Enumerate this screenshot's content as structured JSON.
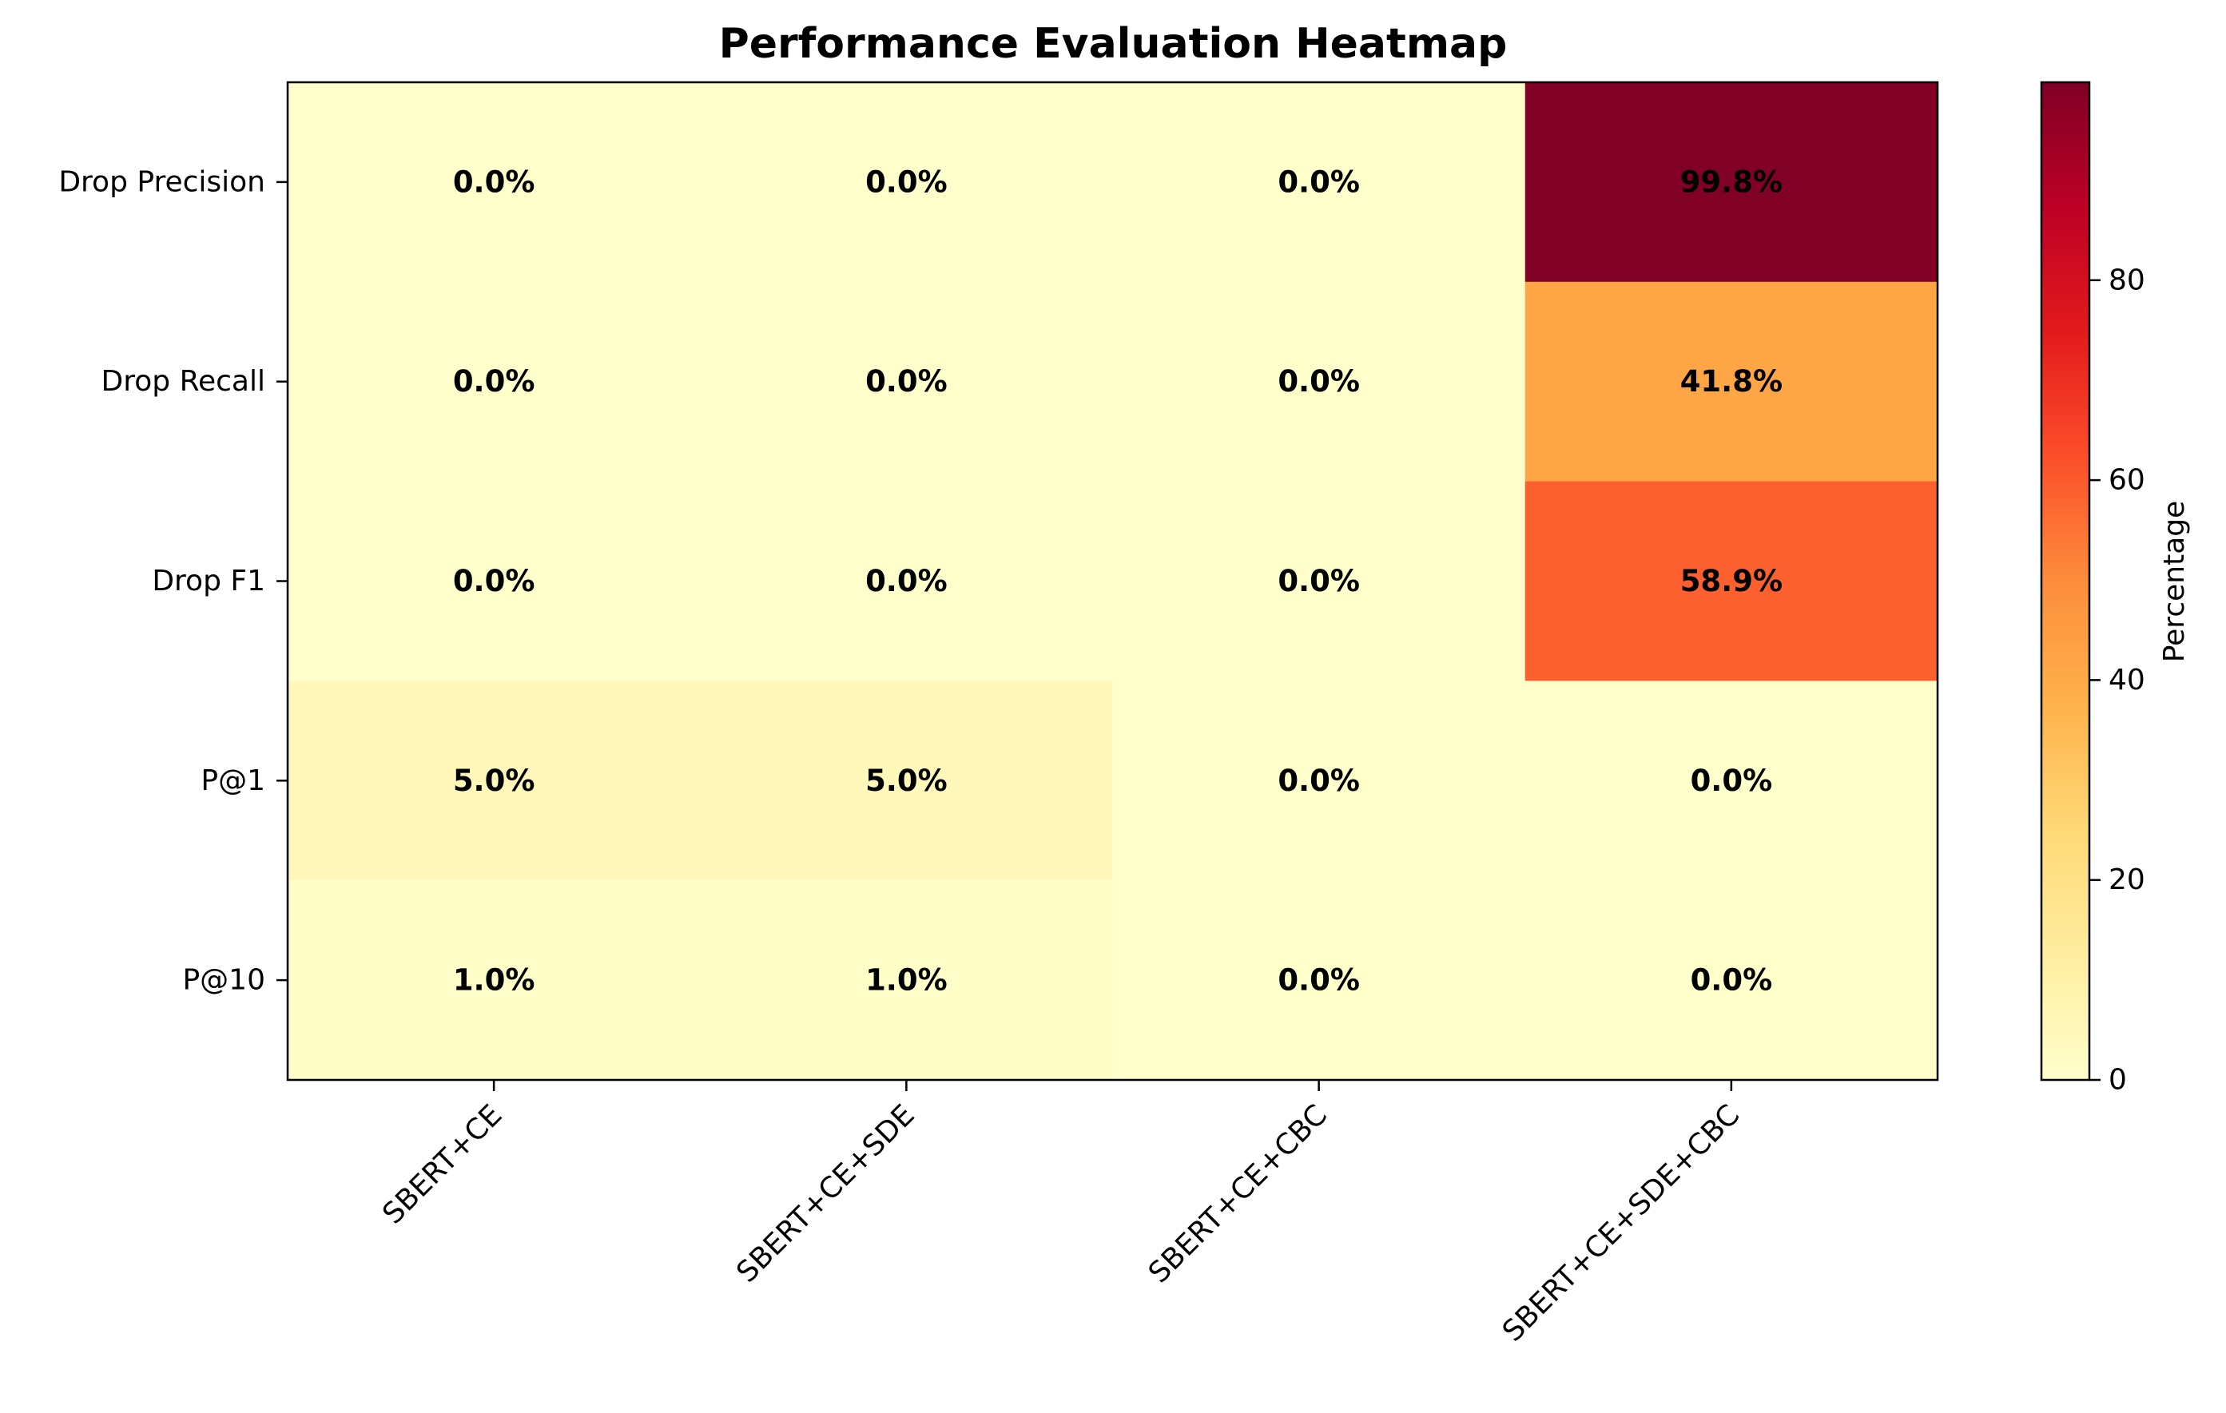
{
  "chart_data": {
    "type": "heatmap",
    "title": "Performance Evaluation Heatmap",
    "xlabel": "",
    "ylabel": "",
    "columns": [
      "SBERT+CE",
      "SBERT+CE+SDE",
      "SBERT+CE+CBC",
      "SBERT+CE+SDE+CBC"
    ],
    "rows": [
      "Drop Precision",
      "Drop Recall",
      "Drop F1",
      "P@1",
      "P@10"
    ],
    "values": [
      [
        0.0,
        0.0,
        0.0,
        99.8
      ],
      [
        0.0,
        0.0,
        0.0,
        41.8
      ],
      [
        0.0,
        0.0,
        0.0,
        58.9
      ],
      [
        5.0,
        5.0,
        0.0,
        0.0
      ],
      [
        1.0,
        1.0,
        0.0,
        0.0
      ]
    ],
    "cell_labels": [
      [
        "0.0%",
        "0.0%",
        "0.0%",
        "99.8%"
      ],
      [
        "0.0%",
        "0.0%",
        "0.0%",
        "41.8%"
      ],
      [
        "0.0%",
        "0.0%",
        "0.0%",
        "58.9%"
      ],
      [
        "5.0%",
        "5.0%",
        "0.0%",
        "0.0%"
      ],
      [
        "1.0%",
        "1.0%",
        "0.0%",
        "0.0%"
      ]
    ],
    "colormap": "YlOrRd",
    "colormap_stops": [
      "#ffffcc",
      "#ffeda0",
      "#fed976",
      "#feb24c",
      "#fd8d3c",
      "#fc4e2a",
      "#e31a1c",
      "#bd0026",
      "#800026"
    ],
    "colorbar": {
      "label": "Percentage",
      "range": [
        0,
        99.8
      ],
      "ticks": [
        0,
        20,
        40,
        60,
        80
      ]
    }
  }
}
